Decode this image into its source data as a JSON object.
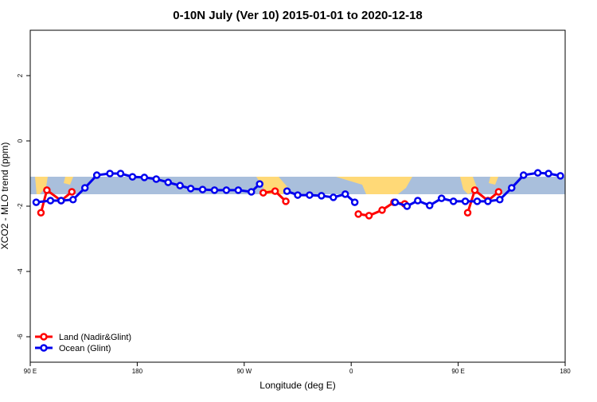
{
  "chart_data": {
    "type": "line",
    "title": "0-10N July (Ver 10)   2015-01-01 to 2020-12-18",
    "x_label": "Longitude (deg E)",
    "y_label": "XCO2 - MLO trend (ppm)",
    "xlim": [
      90,
      540
    ],
    "ylim": [
      -6.78,
      3.39
    ],
    "xticks": [
      {
        "value": 90,
        "label": "90 E"
      },
      180,
      {
        "value": 270,
        "label": "90 W"
      },
      {
        "value": 360,
        "label": "0"
      },
      {
        "value": 450,
        "label": "90 E"
      },
      {
        "value": 540,
        "label": "180"
      }
    ],
    "yticks": [
      -6,
      -4,
      -2,
      0,
      2
    ],
    "legend": "bottom-left",
    "series": [
      {
        "name": "Land (Nadir&Glint)",
        "color": "#ff0000",
        "x": [
          99,
          104,
          116,
          125,
          null,
          286,
          296,
          305,
          null,
          366,
          375,
          386,
          396,
          405,
          null,
          458,
          464,
          475,
          484
        ],
        "values": [
          -2.2,
          -1.51,
          -1.83,
          -1.56,
          null,
          -1.59,
          -1.54,
          -1.85,
          null,
          -2.24,
          -2.29,
          -2.12,
          -1.88,
          -1.93,
          null,
          -2.2,
          -1.51,
          -1.83,
          -1.56
        ]
      },
      {
        "name": "Ocean (Glint)",
        "color": "#0000ee",
        "x": [
          95,
          107,
          116,
          126,
          136,
          146,
          157,
          166,
          176,
          186,
          196,
          206,
          216,
          225,
          235,
          245,
          255,
          265,
          276,
          283,
          null,
          306,
          315,
          325,
          335,
          345,
          355,
          363,
          null,
          397,
          407,
          416,
          426,
          436,
          446,
          456,
          466,
          475,
          485,
          495,
          505,
          517,
          526,
          536
        ],
        "values": [
          -1.88,
          -1.83,
          -1.83,
          -1.8,
          -1.44,
          -1.05,
          -1.0,
          -1.0,
          -1.1,
          -1.12,
          -1.17,
          -1.27,
          -1.37,
          -1.46,
          -1.49,
          -1.51,
          -1.51,
          -1.51,
          -1.56,
          -1.32,
          null,
          -1.54,
          -1.66,
          -1.66,
          -1.68,
          -1.73,
          -1.63,
          -1.88,
          null,
          -1.88,
          -2.0,
          -1.83,
          -1.98,
          -1.76,
          -1.85,
          -1.85,
          -1.85,
          -1.85,
          -1.8,
          -1.44,
          -1.05,
          -0.98,
          -1.0,
          -1.07
        ]
      }
    ]
  }
}
